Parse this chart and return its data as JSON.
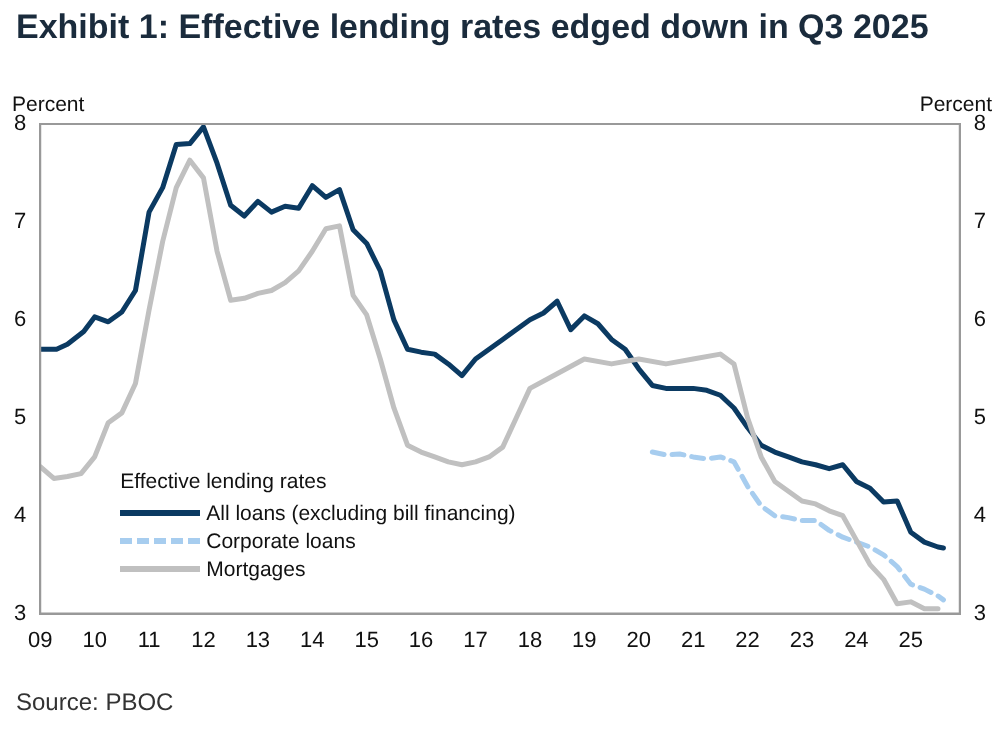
{
  "chart_data": {
    "type": "line",
    "title": "Exhibit 1: Effective lending rates edged down in Q3 2025",
    "ylabel": "Percent",
    "y2label": "Percent",
    "legend_title": "Effective lending rates",
    "legend": "bottom left",
    "grid": false,
    "marker": "none",
    "annotations": [
      "Source: PBOC"
    ],
    "xlim": [
      2009,
      2025.9
    ],
    "xticks": [
      {
        "value": 2009,
        "label": "09"
      },
      {
        "value": 2010,
        "label": "10"
      },
      {
        "value": 2011,
        "label": "11"
      },
      {
        "value": 2012,
        "label": "12"
      },
      {
        "value": 2013,
        "label": "13"
      },
      {
        "value": 2014,
        "label": "14"
      },
      {
        "value": 2015,
        "label": "15"
      },
      {
        "value": 2016,
        "label": "16"
      },
      {
        "value": 2017,
        "label": "17"
      },
      {
        "value": 2018,
        "label": "18"
      },
      {
        "value": 2019,
        "label": "19"
      },
      {
        "value": 2020,
        "label": "20"
      },
      {
        "value": 2021,
        "label": "21"
      },
      {
        "value": 2022,
        "label": "22"
      },
      {
        "value": 2023,
        "label": "23"
      },
      {
        "value": 2024,
        "label": "24"
      },
      {
        "value": 2025,
        "label": "25"
      }
    ],
    "ylim": [
      3,
      8
    ],
    "yticks": [
      3,
      4,
      5,
      6,
      7,
      8
    ],
    "y2lim": [
      3,
      8
    ],
    "y2ticks": [
      3,
      4,
      5,
      6,
      7,
      8
    ],
    "series": [
      {
        "name": "Mortgages",
        "color": "#c0c0c0",
        "line_style": "solid",
        "x": [
          2009,
          2009.25,
          2009.5,
          2009.75,
          2010,
          2010.25,
          2010.5,
          2010.75,
          2011,
          2011.25,
          2011.5,
          2011.75,
          2012,
          2012.25,
          2012.5,
          2012.75,
          2013,
          2013.25,
          2013.5,
          2013.75,
          2014,
          2014.25,
          2014.5,
          2014.75,
          2015,
          2015.25,
          2015.5,
          2015.75,
          2016,
          2016.25,
          2016.5,
          2016.75,
          2017,
          2017.25,
          2017.5,
          2017.75,
          2018,
          2018.5,
          2019,
          2019.5,
          2020,
          2020.5,
          2021,
          2021.5,
          2021.75,
          2022,
          2022.25,
          2022.5,
          2022.75,
          2023,
          2023.25,
          2023.5,
          2023.75,
          2024,
          2024.25,
          2024.5,
          2024.75,
          2025,
          2025.25,
          2025.5
        ],
        "values": [
          4.5,
          4.38,
          4.4,
          4.43,
          4.6,
          4.95,
          5.05,
          5.35,
          6.1,
          6.8,
          7.35,
          7.63,
          7.45,
          6.7,
          6.2,
          6.22,
          6.27,
          6.3,
          6.38,
          6.5,
          6.7,
          6.93,
          6.96,
          6.25,
          6.05,
          5.6,
          5.1,
          4.72,
          4.65,
          4.6,
          4.55,
          4.52,
          4.55,
          4.6,
          4.7,
          5.0,
          5.3,
          5.45,
          5.6,
          5.55,
          5.6,
          5.55,
          5.6,
          5.65,
          5.55,
          5.0,
          4.6,
          4.35,
          4.25,
          4.15,
          4.12,
          4.05,
          4.0,
          3.75,
          3.5,
          3.35,
          3.1,
          3.12,
          3.05,
          3.05
        ]
      },
      {
        "name": "Corporate loans",
        "color": "#a7cdef",
        "line_style": "dashed",
        "x": [
          2020.25,
          2020.5,
          2020.75,
          2021,
          2021.25,
          2021.5,
          2021.75,
          2022,
          2022.25,
          2022.5,
          2022.75,
          2023,
          2023.25,
          2023.5,
          2023.75,
          2024,
          2024.25,
          2024.5,
          2024.75,
          2025,
          2025.25,
          2025.5,
          2025.6
        ],
        "values": [
          4.65,
          4.62,
          4.63,
          4.6,
          4.58,
          4.6,
          4.55,
          4.3,
          4.1,
          4.0,
          3.98,
          3.95,
          3.95,
          3.85,
          3.78,
          3.73,
          3.68,
          3.6,
          3.48,
          3.3,
          3.25,
          3.18,
          3.14
        ]
      },
      {
        "name": "All loans (excluding bill financing)",
        "color": "#0b3a62",
        "line_style": "solid",
        "x": [
          2009,
          2009.3,
          2009.5,
          2009.8,
          2010,
          2010.25,
          2010.5,
          2010.75,
          2011,
          2011.25,
          2011.5,
          2011.75,
          2012,
          2012.25,
          2012.5,
          2012.75,
          2013,
          2013.25,
          2013.5,
          2013.75,
          2014,
          2014.25,
          2014.5,
          2014.75,
          2015,
          2015.25,
          2015.5,
          2015.75,
          2016,
          2016.25,
          2016.5,
          2016.75,
          2017,
          2017.5,
          2018,
          2018.25,
          2018.5,
          2018.75,
          2019,
          2019.25,
          2019.5,
          2019.75,
          2020,
          2020.25,
          2020.5,
          2020.75,
          2021,
          2021.25,
          2021.5,
          2021.75,
          2022,
          2022.25,
          2022.5,
          2022.75,
          2023,
          2023.25,
          2023.5,
          2023.75,
          2024,
          2024.25,
          2024.5,
          2024.75,
          2025,
          2025.25,
          2025.5,
          2025.6
        ],
        "values": [
          5.7,
          5.7,
          5.75,
          5.88,
          6.03,
          5.98,
          6.08,
          6.3,
          7.1,
          7.35,
          7.79,
          7.8,
          7.97,
          7.6,
          7.17,
          7.06,
          7.21,
          7.1,
          7.16,
          7.14,
          7.37,
          7.25,
          7.33,
          6.92,
          6.78,
          6.5,
          6.0,
          5.7,
          5.67,
          5.65,
          5.55,
          5.43,
          5.6,
          5.8,
          6.0,
          6.07,
          6.19,
          5.9,
          6.04,
          5.96,
          5.8,
          5.7,
          5.5,
          5.33,
          5.3,
          5.3,
          5.3,
          5.28,
          5.23,
          5.1,
          4.9,
          4.72,
          4.65,
          4.6,
          4.55,
          4.52,
          4.48,
          4.52,
          4.35,
          4.28,
          4.14,
          4.15,
          3.83,
          3.73,
          3.68,
          3.67
        ]
      }
    ]
  }
}
